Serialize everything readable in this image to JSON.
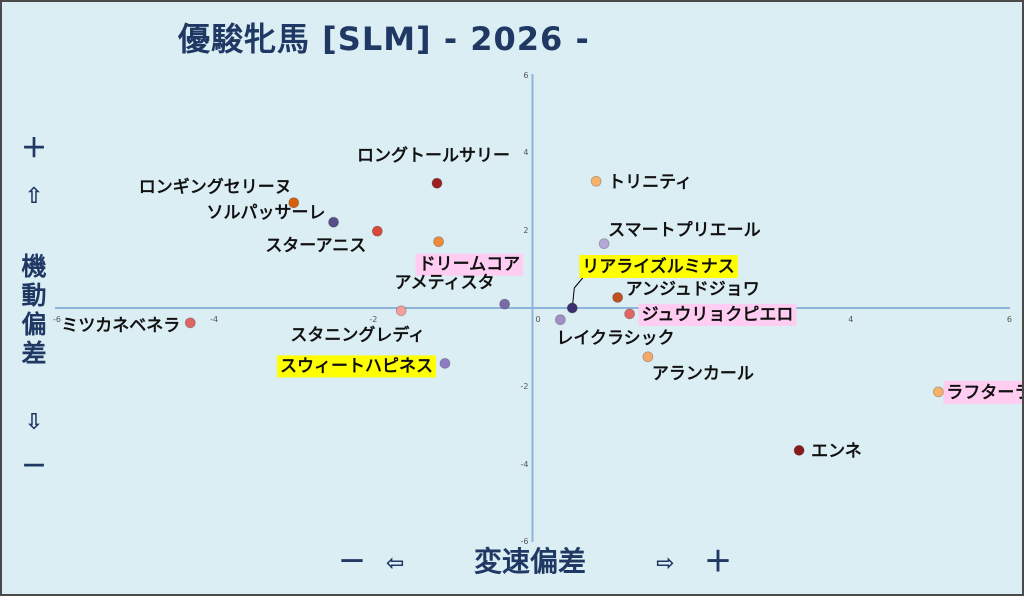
{
  "chart_data": {
    "type": "scatter",
    "title": "優駿牝馬 [SLM]  - 2026 -",
    "xlabel": "変速偏差",
    "ylabel": "機動偏差",
    "xlim": [
      -6,
      6
    ],
    "ylim": [
      -6,
      6
    ],
    "x_ticks": [
      "-6",
      "-4",
      "-2",
      "0",
      "2",
      "4",
      "6"
    ],
    "y_ticks": [
      "-6",
      "-4",
      "-2",
      "0",
      "2",
      "4",
      "6"
    ],
    "grid": false,
    "y_axis_markers": {
      "plus": "＋",
      "up_arrow": "⇧",
      "down_arrow": "⇩",
      "minus": "－"
    },
    "x_axis_markers": {
      "minus": "－",
      "left_arrow": "⇦",
      "right_arrow": "⇨",
      "plus": "＋"
    },
    "points": [
      {
        "name": "ロンギングセリーヌ",
        "x": -3.0,
        "y": 2.7,
        "color": "#d9600a",
        "highlight": "none"
      },
      {
        "name": "ソルパッサーレ",
        "x": -2.5,
        "y": 2.2,
        "color": "#5b4f8a",
        "highlight": "none"
      },
      {
        "name": "ロングトールサリー",
        "x": -1.2,
        "y": 3.2,
        "color": "#9e1f1f",
        "highlight": "none"
      },
      {
        "name": "スターアニス",
        "x": -1.95,
        "y": 1.97,
        "color": "#d9493a",
        "highlight": "none"
      },
      {
        "name": "ドリームコア",
        "x": -1.18,
        "y": 1.7,
        "color": "#f08a3a",
        "highlight": "pink"
      },
      {
        "name": "トリニティ",
        "x": 0.8,
        "y": 3.25,
        "color": "#f6b26b",
        "highlight": "none"
      },
      {
        "name": "スマートプリエール",
        "x": 0.9,
        "y": 1.65,
        "color": "#b4a7d6",
        "highlight": "none"
      },
      {
        "name": "リアライズルミナス",
        "x": 0.5,
        "y": 0.0,
        "color": "#3b2f6b",
        "highlight": "yellow"
      },
      {
        "name": "アンジュドジョワ",
        "x": 1.07,
        "y": 0.27,
        "color": "#c0501e",
        "highlight": "none"
      },
      {
        "name": "ジュウリョクピエロ",
        "x": 1.22,
        "y": -0.15,
        "color": "#e06666",
        "highlight": "pink"
      },
      {
        "name": "アメティスタ",
        "x": -0.35,
        "y": 0.1,
        "color": "#7b6aa8",
        "highlight": "none"
      },
      {
        "name": "レイクラシック",
        "x": 0.35,
        "y": -0.3,
        "color": "#9f8fc4",
        "highlight": "none"
      },
      {
        "name": "ミツカネベネラ",
        "x": -4.3,
        "y": -0.38,
        "color": "#e06666",
        "highlight": "none"
      },
      {
        "name": "スタニングレディ",
        "x": -1.65,
        "y": -0.07,
        "color": "#f4a09a",
        "highlight": "none"
      },
      {
        "name": "スウィートハピネス",
        "x": -1.1,
        "y": -1.42,
        "color": "#8e7cc3",
        "highlight": "yellow"
      },
      {
        "name": "アランカール",
        "x": 1.45,
        "y": -1.25,
        "color": "#f6a86b",
        "highlight": "none"
      },
      {
        "name": "ラフターラインズ",
        "x": 5.1,
        "y": -2.15,
        "color": "#f6b26b",
        "highlight": "pink"
      },
      {
        "name": "エンネ",
        "x": 3.35,
        "y": -3.65,
        "color": "#8b1a1a",
        "highlight": "none"
      }
    ]
  }
}
